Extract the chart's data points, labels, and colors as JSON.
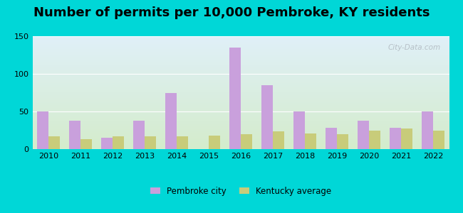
{
  "title": "Number of permits per 10,000 Pembroke, KY residents",
  "years": [
    2010,
    2011,
    2012,
    2013,
    2014,
    2015,
    2016,
    2017,
    2018,
    2019,
    2020,
    2021,
    2022
  ],
  "pembroke": [
    50,
    38,
    15,
    38,
    75,
    0,
    135,
    85,
    50,
    28,
    38,
    28,
    50
  ],
  "kentucky": [
    17,
    13,
    17,
    17,
    17,
    18,
    20,
    24,
    21,
    20,
    25,
    27,
    25
  ],
  "pembroke_color": "#c9a0dc",
  "kentucky_color": "#c8cc7a",
  "bg_outer": "#00d7d7",
  "bg_plot_top": "#e0f0f8",
  "bg_plot_bottom": "#d4eccc",
  "ylim": [
    0,
    150
  ],
  "yticks": [
    0,
    50,
    100,
    150
  ],
  "bar_width": 0.35,
  "watermark": "City-Data.com",
  "legend_pembroke": "Pembroke city",
  "legend_kentucky": "Kentucky average",
  "title_fontsize": 13
}
